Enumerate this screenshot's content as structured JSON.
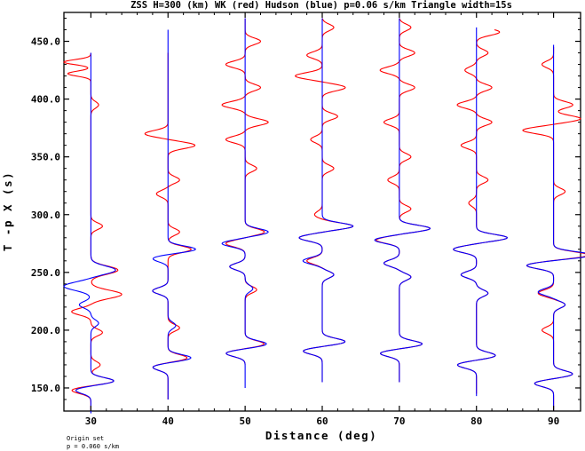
{
  "chart_data": {
    "type": "line",
    "title": "ZSS H=300 (km) WK (red) Hudson (blue) p=0.06 s/km Triangle width=15s",
    "xlabel": "Distance (deg)",
    "ylabel": "T -p X (s)",
    "xlim": [
      26.5,
      93.5
    ],
    "ylim": [
      130,
      475
    ],
    "x_ticks": [
      "30",
      "40",
      "50",
      "60",
      "70",
      "80",
      "90"
    ],
    "y_ticks": [
      "150.0",
      "200.0",
      "250.0",
      "300.0",
      "350.0",
      "400.0",
      "450.0"
    ],
    "x_tick_values": [
      30,
      40,
      50,
      60,
      70,
      80,
      90
    ],
    "y_tick_values": [
      150,
      200,
      250,
      300,
      350,
      400,
      450
    ],
    "series": [
      {
        "name": "WK",
        "color": "#ff0000"
      },
      {
        "name": "Hudson",
        "color": "#0000ff"
      }
    ],
    "traces": [
      {
        "distance": 30,
        "red": {
          "start": 440,
          "end": 130,
          "arrivals": [
            [
              432,
              -3.5,
              3
            ],
            [
              422,
              -3,
              3
            ],
            [
              395,
              1,
              4
            ],
            [
              290,
              1.5,
              4
            ],
            [
              252,
              3.5,
              5
            ],
            [
              231,
              4,
              5
            ],
            [
              216,
              -2.5,
              4
            ],
            [
              198,
              1.5,
              4
            ],
            [
              170,
              1.2,
              4
            ],
            [
              156,
              3,
              4
            ],
            [
              148,
              -2.5,
              4
            ]
          ]
        },
        "blue": {
          "start": 440,
          "end": 128,
          "arrivals": [
            [
              252,
              3.2,
              5
            ],
            [
              238,
              -3.5,
              5
            ],
            [
              222,
              -1.5,
              4
            ],
            [
              206,
              1,
              4
            ],
            [
              156,
              3,
              4
            ],
            [
              148,
              -2,
              4
            ]
          ]
        }
      },
      {
        "distance": 40,
        "red": {
          "start": 440,
          "end": 140,
          "arrivals": [
            [
              370,
              -3,
              4
            ],
            [
              360,
              3.5,
              4
            ],
            [
              330,
              1.5,
              4
            ],
            [
              318,
              -1.5,
              4
            ],
            [
              285,
              1.5,
              4
            ],
            [
              270,
              3,
              4
            ],
            [
              234,
              -2,
              4
            ],
            [
              202,
              1.5,
              4
            ],
            [
              176,
              2.5,
              4
            ],
            [
              168,
              -2,
              4
            ]
          ]
        },
        "blue": {
          "start": 460,
          "end": 140,
          "arrivals": [
            [
              270,
              3.6,
              4
            ],
            [
              262,
              -2,
              4
            ],
            [
              234,
              -2,
              4
            ],
            [
              204,
              1,
              4
            ],
            [
              176,
              3,
              4
            ],
            [
              168,
              -2,
              4
            ]
          ]
        }
      },
      {
        "distance": 50,
        "red": {
          "start": 470,
          "end": 170,
          "arrivals": [
            [
              450,
              2,
              4
            ],
            [
              430,
              -2.5,
              4
            ],
            [
              410,
              2,
              4
            ],
            [
              395,
              -3,
              4
            ],
            [
              380,
              3,
              4
            ],
            [
              365,
              -2.5,
              4
            ],
            [
              340,
              1.5,
              4
            ],
            [
              285,
              2.5,
              4
            ],
            [
              275,
              -2.5,
              4
            ],
            [
              255,
              -2,
              4
            ],
            [
              235,
              1.5,
              4
            ],
            [
              188,
              2.5,
              4
            ],
            [
              180,
              -2.5,
              4
            ]
          ]
        },
        "blue": {
          "start": 470,
          "end": 150,
          "arrivals": [
            [
              285,
              3,
              4
            ],
            [
              275,
              -3,
              4
            ],
            [
              255,
              -2,
              4
            ],
            [
              236,
              1,
              4
            ],
            [
              188,
              2.8,
              4
            ],
            [
              180,
              -2.5,
              4
            ]
          ]
        }
      },
      {
        "distance": 60,
        "red": {
          "start": 470,
          "end": 155,
          "arrivals": [
            [
              462,
              1.5,
              4
            ],
            [
              438,
              -2,
              4
            ],
            [
              420,
              -3.5,
              4
            ],
            [
              410,
              3,
              4
            ],
            [
              385,
              2,
              4
            ],
            [
              365,
              -1.5,
              4
            ],
            [
              340,
              1.5,
              4
            ],
            [
              300,
              -1,
              4
            ],
            [
              290,
              4,
              4
            ],
            [
              280,
              -3,
              4
            ],
            [
              260,
              -2,
              4
            ],
            [
              248,
              1.5,
              4
            ],
            [
              190,
              3,
              4
            ],
            [
              182,
              -2.5,
              4
            ]
          ]
        },
        "blue": {
          "start": 470,
          "end": 155,
          "arrivals": [
            [
              290,
              4,
              4
            ],
            [
              280,
              -3,
              4
            ],
            [
              260,
              -2.5,
              4
            ],
            [
              248,
              1.5,
              4
            ],
            [
              190,
              3,
              4
            ],
            [
              182,
              -2.5,
              4
            ]
          ]
        }
      },
      {
        "distance": 70,
        "red": {
          "start": 470,
          "end": 155,
          "arrivals": [
            [
              462,
              1.5,
              4
            ],
            [
              440,
              2,
              4
            ],
            [
              425,
              -2.5,
              4
            ],
            [
              410,
              2,
              4
            ],
            [
              380,
              -2,
              4
            ],
            [
              350,
              1.5,
              4
            ],
            [
              330,
              -1.5,
              4
            ],
            [
              305,
              1.5,
              4
            ],
            [
              288,
              4,
              4
            ],
            [
              278,
              -3,
              4
            ],
            [
              258,
              -2,
              4
            ],
            [
              246,
              1.5,
              4
            ],
            [
              188,
              3,
              4
            ],
            [
              180,
              -2.5,
              4
            ]
          ]
        },
        "blue": {
          "start": 470,
          "end": 155,
          "arrivals": [
            [
              288,
              4,
              4
            ],
            [
              278,
              -3.2,
              4
            ],
            [
              258,
              -2,
              4
            ],
            [
              246,
              1.5,
              4
            ],
            [
              188,
              3,
              4
            ],
            [
              180,
              -2.5,
              4
            ]
          ]
        }
      },
      {
        "distance": 80,
        "red": {
          "start": 460,
          "end": 145,
          "arrivals": [
            [
              458,
              3,
              4
            ],
            [
              440,
              1.5,
              4
            ],
            [
              425,
              -1.5,
              4
            ],
            [
              410,
              2,
              4
            ],
            [
              395,
              -2.5,
              4
            ],
            [
              380,
              2,
              4
            ],
            [
              360,
              -2,
              4
            ],
            [
              330,
              1.5,
              4
            ],
            [
              310,
              -1,
              4
            ],
            [
              280,
              4,
              4
            ],
            [
              270,
              -3,
              4
            ],
            [
              248,
              -2,
              4
            ],
            [
              232,
              1.5,
              4
            ],
            [
              178,
              2.5,
              4
            ],
            [
              170,
              -2.5,
              4
            ]
          ]
        },
        "blue": {
          "start": 462,
          "end": 143,
          "arrivals": [
            [
              280,
              4,
              4
            ],
            [
              270,
              -3,
              4
            ],
            [
              248,
              -2,
              4
            ],
            [
              232,
              1.5,
              4
            ],
            [
              178,
              2.5,
              4
            ],
            [
              170,
              -2.5,
              4
            ]
          ]
        }
      },
      {
        "distance": 90,
        "red": {
          "start": 445,
          "end": 130,
          "arrivals": [
            [
              430,
              -1.5,
              4
            ],
            [
              395,
              2.5,
              4
            ],
            [
              383,
              3.5,
              4
            ],
            [
              373,
              -4,
              4
            ],
            [
              320,
              1.5,
              4
            ],
            [
              265,
              4.5,
              4
            ],
            [
              256,
              -3.5,
              4
            ],
            [
              232,
              -2,
              4
            ],
            [
              222,
              1.5,
              4
            ],
            [
              200,
              -1.5,
              4
            ],
            [
              162,
              2.5,
              4
            ],
            [
              154,
              -2.5,
              4
            ]
          ]
        },
        "blue": {
          "start": 447,
          "end": 130,
          "arrivals": [
            [
              265,
              5,
              4
            ],
            [
              256,
              -3.5,
              4
            ],
            [
              233,
              -2,
              4
            ],
            [
              222,
              1.5,
              4
            ],
            [
              162,
              2.5,
              4
            ],
            [
              154,
              -2.5,
              4
            ]
          ]
        }
      }
    ]
  },
  "footer": {
    "line1": "Origin set",
    "line2": "p = 0.060 s/km"
  }
}
